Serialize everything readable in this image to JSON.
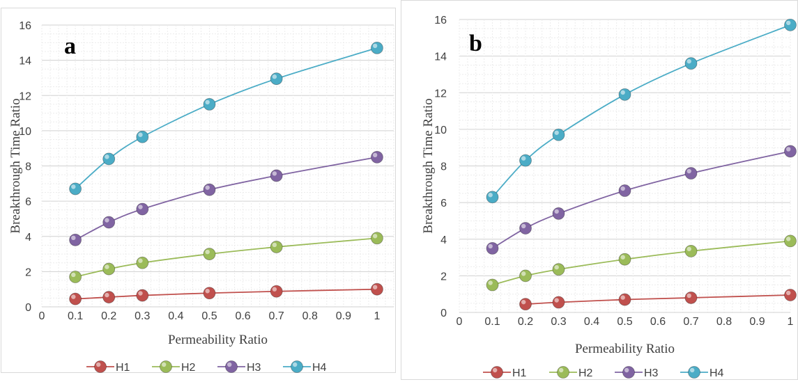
{
  "chart_data": [
    {
      "type": "line",
      "panel_label": "a",
      "xlabel": "Permeability Ratio",
      "ylabel": "Breakthrough Time Ratio",
      "xlim": [
        0,
        1.05
      ],
      "ylim": [
        0,
        16
      ],
      "xticks": [
        0,
        0.1,
        0.2,
        0.3,
        0.4,
        0.5,
        0.6,
        0.7,
        0.8,
        0.9,
        1
      ],
      "yticks": [
        0,
        2,
        4,
        6,
        8,
        10,
        12,
        14,
        16
      ],
      "grid": true,
      "legend": "bottom",
      "series": [
        {
          "name": "H1",
          "color": "#c0504d",
          "x": [
            0.1,
            0.2,
            0.3,
            0.5,
            0.7,
            1.0
          ],
          "y": [
            0.45,
            0.55,
            0.65,
            0.78,
            0.88,
            1.0
          ]
        },
        {
          "name": "H2",
          "color": "#9bbb59",
          "x": [
            0.1,
            0.2,
            0.3,
            0.5,
            0.7,
            1.0
          ],
          "y": [
            1.7,
            2.15,
            2.5,
            3.0,
            3.4,
            3.9
          ]
        },
        {
          "name": "H3",
          "color": "#8064a2",
          "x": [
            0.1,
            0.2,
            0.3,
            0.5,
            0.7,
            1.0
          ],
          "y": [
            3.8,
            4.8,
            5.55,
            6.65,
            7.45,
            8.5
          ]
        },
        {
          "name": "H4",
          "color": "#4bacc6",
          "x": [
            0.1,
            0.2,
            0.3,
            0.5,
            0.7,
            1.0
          ],
          "y": [
            6.7,
            8.4,
            9.65,
            11.5,
            12.95,
            14.7
          ]
        }
      ]
    },
    {
      "type": "line",
      "panel_label": "b",
      "xlabel": "Permeability Ratio",
      "ylabel": "Breakthrough Time Ratio",
      "xlim": [
        0,
        1
      ],
      "ylim": [
        0,
        16
      ],
      "xticks": [
        0,
        0.1,
        0.2,
        0.3,
        0.4,
        0.5,
        0.6,
        0.7,
        0.8,
        0.9,
        1
      ],
      "yticks": [
        0,
        2,
        4,
        6,
        8,
        10,
        12,
        14,
        16
      ],
      "grid": true,
      "legend": "bottom",
      "series": [
        {
          "name": "H1",
          "color": "#c0504d",
          "x": [
            0.2,
            0.3,
            0.5,
            0.7,
            1.0
          ],
          "y": [
            0.45,
            0.55,
            0.7,
            0.8,
            0.95
          ]
        },
        {
          "name": "H2",
          "color": "#9bbb59",
          "x": [
            0.1,
            0.2,
            0.3,
            0.5,
            0.7,
            1.0
          ],
          "y": [
            1.5,
            2.0,
            2.35,
            2.9,
            3.35,
            3.9
          ]
        },
        {
          "name": "H3",
          "color": "#8064a2",
          "x": [
            0.1,
            0.2,
            0.3,
            0.5,
            0.7,
            1.0
          ],
          "y": [
            3.5,
            4.6,
            5.4,
            6.65,
            7.6,
            8.8
          ]
        },
        {
          "name": "H4",
          "color": "#4bacc6",
          "x": [
            0.1,
            0.2,
            0.3,
            0.5,
            0.7,
            1.0
          ],
          "y": [
            6.3,
            8.3,
            9.7,
            11.9,
            13.6,
            15.7
          ]
        }
      ]
    }
  ]
}
